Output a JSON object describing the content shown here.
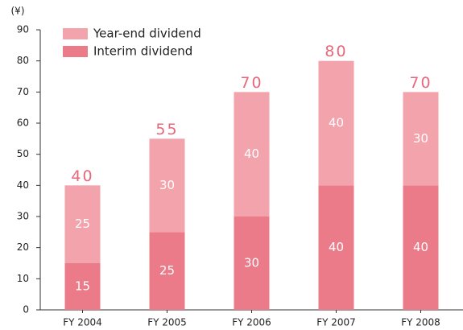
{
  "chart_data": {
    "type": "stacked_bar",
    "y_label": "(¥)",
    "categories": [
      "FY 2004",
      "FY 2005",
      "FY 2006",
      "FY 2007",
      "FY 2008"
    ],
    "series": [
      {
        "name": "Interim dividend",
        "color": "#ec7b8a",
        "values": [
          15,
          25,
          30,
          40,
          40
        ]
      },
      {
        "name": "Year-end dividend",
        "color": "#f3a3ab",
        "values": [
          25,
          30,
          40,
          40,
          30
        ]
      }
    ],
    "totals": [
      40,
      55,
      70,
      80,
      70
    ],
    "ylim": [
      0,
      90
    ],
    "yticks": [
      0,
      10,
      20,
      30,
      40,
      50,
      60,
      70,
      80,
      90
    ]
  }
}
